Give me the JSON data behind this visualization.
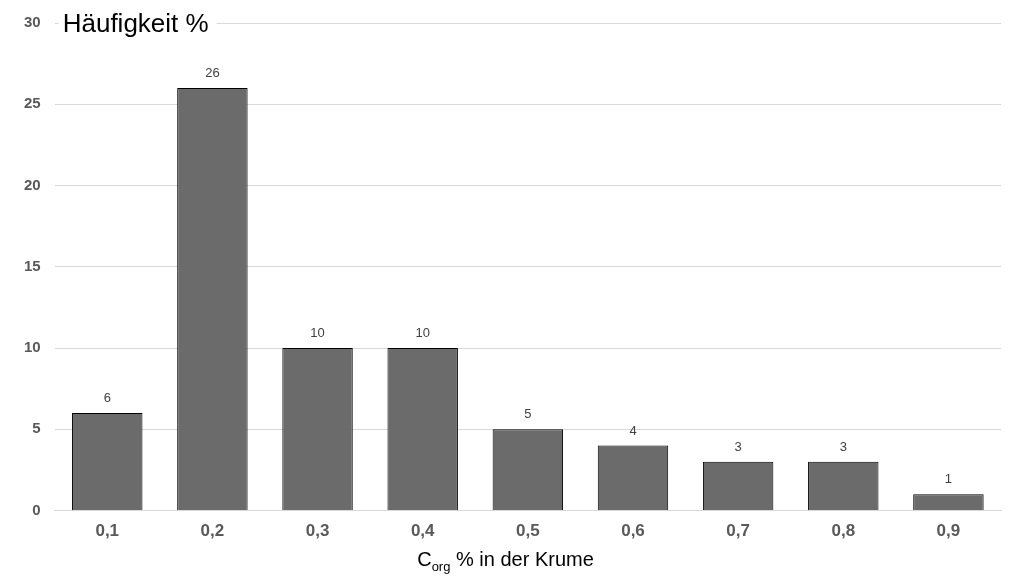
{
  "chart_data": {
    "type": "bar",
    "ylabel": "Häufigkeit %",
    "xlabel": "C$_{org}$ % in der Krume",
    "categories": [
      "0,1",
      "0,2",
      "0,3",
      "0,4",
      "0,5",
      "0,6",
      "0,7",
      "0,8",
      "0,9"
    ],
    "values": [
      6,
      26,
      10,
      10,
      5,
      4,
      3,
      3,
      1
    ],
    "color": "#6b6b6b",
    "ylim": [
      0,
      30
    ],
    "yticks": [
      0,
      5,
      10,
      15,
      20,
      25,
      30
    ],
    "grid": "y",
    "data_labels": true,
    "legend": false
  }
}
